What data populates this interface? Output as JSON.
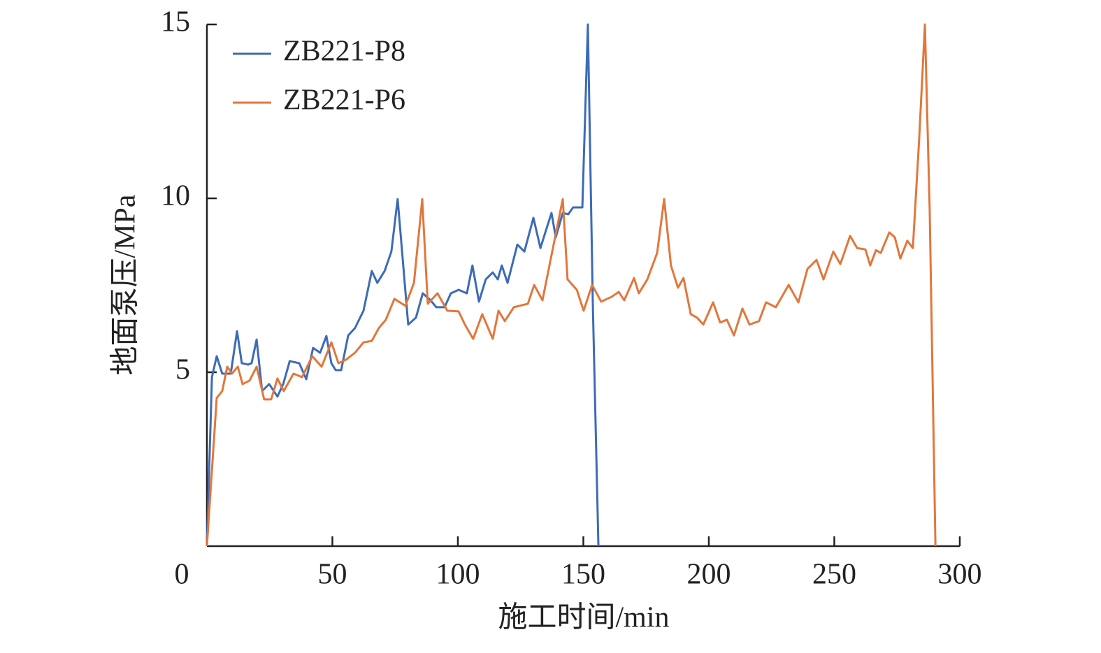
{
  "chart_data": {
    "type": "line",
    "x_label": "施工时间/min",
    "y_label": "地面泵压/MPa",
    "xlim": [
      0,
      300
    ],
    "xticks": [
      0,
      50,
      100,
      150,
      200,
      250,
      300
    ],
    "ylim": [
      0,
      15
    ],
    "yticks": [
      5,
      10,
      15
    ],
    "legend": "upper left",
    "grid": false,
    "series": [
      {
        "name": "ZB221-P8",
        "color": "#3d6bb6",
        "x": [
          0,
          2,
          3.9,
          6.1,
          9.5,
          12,
          13.9,
          16.4,
          17.8,
          19.8,
          22,
          24.8,
          28.1,
          30.4,
          33,
          36.8,
          39.6,
          42.3,
          45.1,
          47.6,
          49.6,
          51.3,
          53.5,
          56.3,
          59,
          62.4,
          65.7,
          67.9,
          70.8,
          73.5,
          76,
          78,
          80.2,
          83.3,
          86,
          89.1,
          91.4,
          94.7,
          97.2,
          100.3,
          103.6,
          105.8,
          108.4,
          111.1,
          113.9,
          115.9,
          117.5,
          119.8,
          123.7,
          126.5,
          130.1,
          132.9,
          135.1,
          137.3,
          139,
          141.8,
          144,
          145.9,
          149.6,
          151.8,
          153.8,
          156
        ],
        "values": [
          0,
          4.86,
          5.46,
          4.96,
          4.96,
          6.18,
          5.26,
          5.22,
          5.26,
          5.94,
          4.46,
          4.66,
          4.3,
          4.66,
          5.32,
          5.26,
          4.8,
          5.7,
          5.56,
          6.04,
          5.26,
          5.06,
          5.06,
          6.06,
          6.27,
          6.77,
          7.91,
          7.57,
          7.91,
          8.47,
          9.98,
          8.27,
          6.37,
          6.57,
          7.27,
          7.07,
          6.87,
          6.87,
          7.27,
          7.37,
          7.27,
          8.07,
          7.03,
          7.67,
          7.87,
          7.67,
          8.07,
          7.57,
          8.67,
          8.47,
          9.44,
          8.57,
          9.08,
          9.58,
          8.88,
          9.58,
          9.54,
          9.74,
          9.74,
          15,
          6.87,
          0
        ]
      },
      {
        "name": "ZB221-P6",
        "color": "#e1773c",
        "x": [
          0,
          3.9,
          6.1,
          8.1,
          10,
          12.3,
          14.2,
          17,
          19.8,
          22.8,
          25.6,
          28.1,
          30.6,
          34.5,
          37.9,
          42,
          45.7,
          49.6,
          52.4,
          55.4,
          59,
          62.4,
          65.7,
          68.5,
          71.3,
          74.7,
          79.1,
          82.5,
          85.8,
          88,
          91.9,
          95.8,
          100.3,
          102.8,
          106.1,
          109.7,
          113.9,
          116.2,
          118.7,
          122.3,
          127.9,
          130.4,
          133.7,
          137.6,
          141.8,
          143.7,
          147.4,
          150.1,
          153.5,
          157.1,
          161.3,
          164.1,
          166.3,
          170.2,
          172.1,
          175.5,
          179.4,
          182.2,
          184.9,
          187.7,
          189.9,
          192.8,
          195.3,
          197.8,
          201.7,
          204.5,
          207.2,
          210,
          213.4,
          216.2,
          220,
          222.8,
          226.7,
          231.8,
          235.7,
          239.3,
          242.9,
          245.7,
          249.6,
          252.4,
          256.3,
          259.1,
          262.4,
          264.3,
          266.6,
          268.5,
          271.9,
          274.1,
          276.3,
          279.1,
          281.3,
          283.8,
          286.1,
          288,
          290.3
        ],
        "values": [
          0,
          4.26,
          4.46,
          5.16,
          4.96,
          5.16,
          4.66,
          4.76,
          5.16,
          4.22,
          4.22,
          4.82,
          4.46,
          4.96,
          4.86,
          5.46,
          5.16,
          5.86,
          5.26,
          5.36,
          5.56,
          5.86,
          5.9,
          6.27,
          6.51,
          7.11,
          6.91,
          7.57,
          9.98,
          6.97,
          7.27,
          6.77,
          6.75,
          6.37,
          5.96,
          6.67,
          5.96,
          6.77,
          6.47,
          6.87,
          6.97,
          7.51,
          7.07,
          8.47,
          9.98,
          7.67,
          7.37,
          6.77,
          7.51,
          7.03,
          7.17,
          7.31,
          7.07,
          7.71,
          7.27,
          7.67,
          8.43,
          9.98,
          8.07,
          7.43,
          7.71,
          6.67,
          6.57,
          6.37,
          7.01,
          6.43,
          6.51,
          6.06,
          6.83,
          6.37,
          6.47,
          7.01,
          6.87,
          7.51,
          7.01,
          7.97,
          8.23,
          7.67,
          8.47,
          8.11,
          8.92,
          8.57,
          8.53,
          8.07,
          8.51,
          8.43,
          9.02,
          8.88,
          8.27,
          8.78,
          8.57,
          11.69,
          15,
          9.68,
          0
        ]
      }
    ]
  }
}
